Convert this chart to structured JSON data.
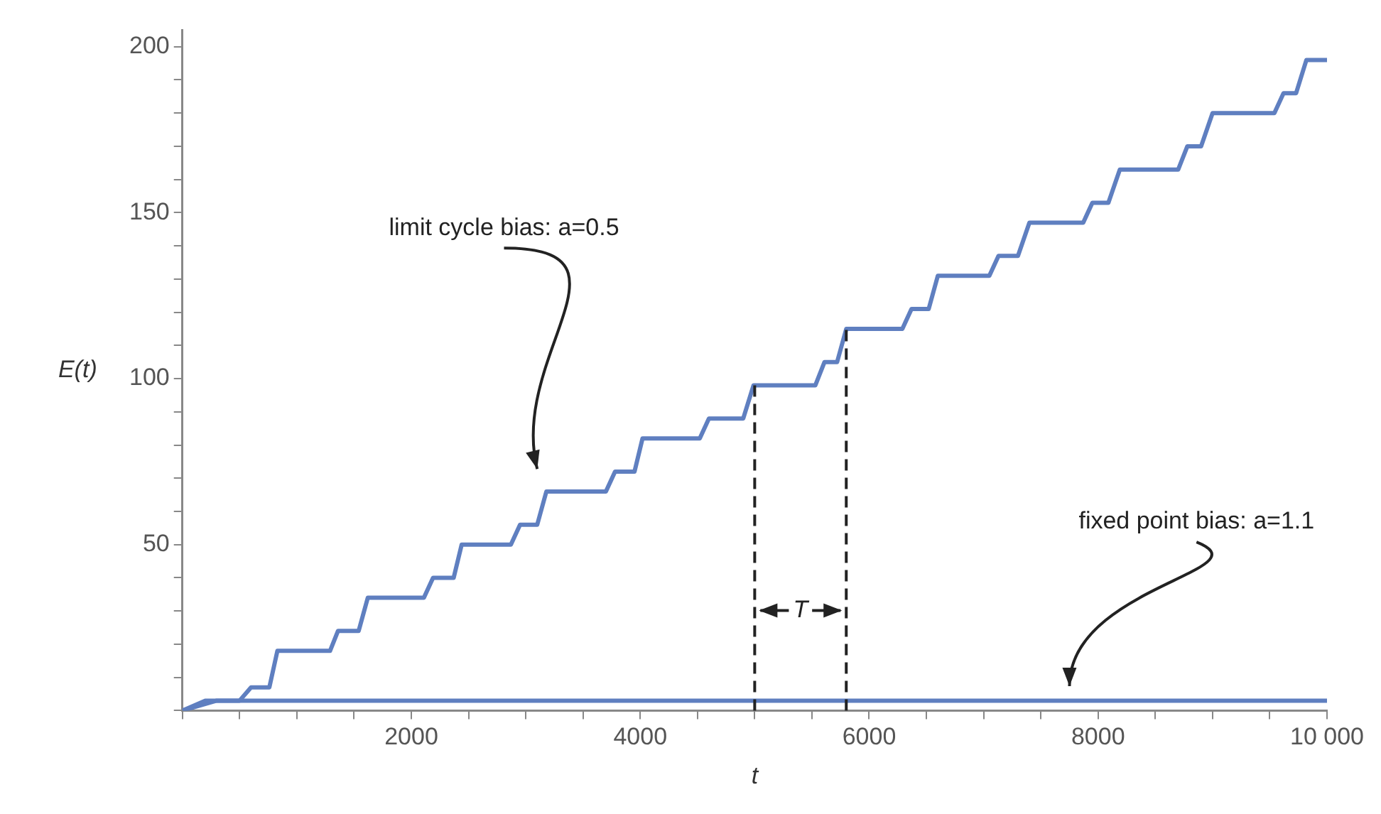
{
  "chart_data": {
    "type": "line",
    "xlabel": "t",
    "ylabel": "E(t)",
    "xlim": [
      0,
      10000
    ],
    "ylim": [
      0,
      205
    ],
    "xticks": [
      {
        "value": 0,
        "label": null
      },
      {
        "value": 500,
        "label": null
      },
      {
        "value": 1000,
        "label": null
      },
      {
        "value": 1500,
        "label": null
      },
      2000,
      {
        "value": 2500,
        "label": null
      },
      {
        "value": 3000,
        "label": null
      },
      {
        "value": 3500,
        "label": null
      },
      4000,
      {
        "value": 4500,
        "label": null
      },
      {
        "value": 5000,
        "label": null
      },
      {
        "value": 5500,
        "label": null
      },
      6000,
      {
        "value": 6500,
        "label": null
      },
      {
        "value": 7000,
        "label": null
      },
      {
        "value": 7500,
        "label": null
      },
      8000,
      {
        "value": 8500,
        "label": null
      },
      {
        "value": 9000,
        "label": null
      },
      {
        "value": 9500,
        "label": null
      },
      {
        "value": 10000,
        "label": "10 000"
      }
    ],
    "yticks": [
      {
        "value": 0,
        "label": null
      },
      {
        "value": 10,
        "label": null
      },
      {
        "value": 20,
        "label": null
      },
      {
        "value": 30,
        "label": null
      },
      {
        "value": 40,
        "label": null
      },
      50,
      {
        "value": 60,
        "label": null
      },
      {
        "value": 70,
        "label": null
      },
      {
        "value": 80,
        "label": null
      },
      {
        "value": 90,
        "label": null
      },
      100,
      {
        "value": 110,
        "label": null
      },
      {
        "value": 120,
        "label": null
      },
      {
        "value": 130,
        "label": null
      },
      {
        "value": 140,
        "label": null
      },
      150,
      {
        "value": 160,
        "label": null
      },
      {
        "value": 170,
        "label": null
      },
      {
        "value": 180,
        "label": null
      },
      {
        "value": 190,
        "label": null
      },
      200
    ],
    "grid": false,
    "legend": false,
    "marker": "none",
    "line_style": "solid",
    "series": [
      {
        "color": "#5f7fc0",
        "x": [
          0,
          200,
          500,
          600,
          760,
          830,
          1290,
          1360,
          1540,
          1620,
          2110,
          2190,
          2370,
          2440,
          2870,
          2950,
          3100,
          3180,
          3700,
          3780,
          3950,
          4020,
          4520,
          4600,
          4900,
          4990,
          5530,
          5610,
          5720,
          5800,
          6290,
          6370,
          6520,
          6600,
          7050,
          7130,
          7300,
          7400,
          7870,
          7950,
          8090,
          8190,
          8700,
          8780,
          8900,
          9000,
          9540,
          9620,
          9730,
          9820,
          9950,
          10000
        ],
        "values": [
          0,
          3,
          3,
          7,
          7,
          18,
          18,
          24,
          24,
          34,
          34,
          40,
          40,
          50,
          50,
          56,
          56,
          66,
          66,
          72,
          72,
          82,
          82,
          88,
          88,
          98,
          98,
          105,
          105,
          115,
          115,
          121,
          121,
          131,
          131,
          137,
          137,
          147,
          147,
          153,
          153,
          163,
          163,
          170,
          170,
          180,
          180,
          186,
          186,
          196,
          196,
          196
        ]
      },
      {
        "color": "#5f7fc0",
        "x": [
          0,
          300,
          10000
        ],
        "values": [
          0,
          3,
          3
        ]
      }
    ],
    "ref_lines": [
      {
        "axis": "x",
        "value": 5000,
        "color": "#222222",
        "line_style": "dashed"
      },
      {
        "axis": "x",
        "value": 5800,
        "color": "#222222",
        "line_style": "dashed"
      }
    ],
    "annotations": [
      "limit cycle bias: a=0.5",
      "fixed point bias: a=1.1",
      "T"
    ]
  }
}
